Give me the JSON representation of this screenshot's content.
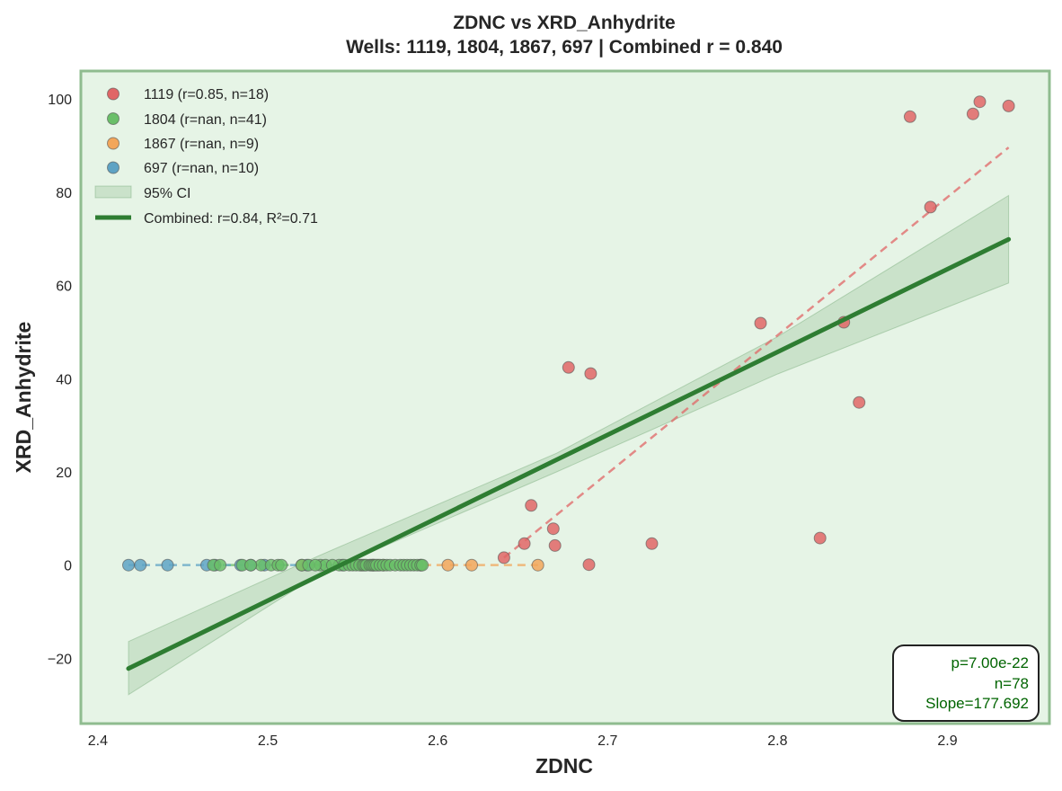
{
  "chart_data": {
    "type": "scatter",
    "title": "ZDNC vs XRD_Anhydrite",
    "subtitle": "Wells: 1119, 1804, 1867, 697 | Combined r = 0.840",
    "xlabel": "ZDNC",
    "ylabel": "XRD_Anhydrite",
    "xlim": [
      2.39,
      2.96
    ],
    "ylim": [
      -34,
      106
    ],
    "xticks": [
      2.4,
      2.5,
      2.6,
      2.7,
      2.8,
      2.9
    ],
    "yticks": [
      -20,
      0,
      20,
      40,
      60,
      80,
      100
    ],
    "ytick_labels": [
      "−20",
      "0",
      "20",
      "40",
      "60",
      "80",
      "100"
    ],
    "grid": false,
    "legend_position": "top-left",
    "background_color": "#e6f4e6",
    "frame_color": "#8fbc8f",
    "series": [
      {
        "name": "1119 (r=0.85, n=18)",
        "color": "#e06666",
        "points": [
          [
            2.639,
            1.6
          ],
          [
            2.651,
            4.6
          ],
          [
            2.655,
            12.8
          ],
          [
            2.668,
            7.8
          ],
          [
            2.669,
            4.2
          ],
          [
            2.677,
            42.4
          ],
          [
            2.689,
            0.1
          ],
          [
            2.69,
            41.1
          ],
          [
            2.726,
            4.6
          ],
          [
            2.79,
            51.9
          ],
          [
            2.825,
            5.8
          ],
          [
            2.839,
            52.1
          ],
          [
            2.848,
            34.9
          ],
          [
            2.878,
            96.2
          ],
          [
            2.89,
            76.8
          ],
          [
            2.915,
            96.8
          ],
          [
            2.919,
            99.4
          ],
          [
            2.936,
            98.5
          ]
        ],
        "fit": [
          [
            2.639,
            1.6
          ],
          [
            2.936,
            89.6
          ]
        ]
      },
      {
        "name": "1804 (r=nan, n=41)",
        "color": "#6abf69",
        "points": [
          [
            2.468,
            0
          ],
          [
            2.472,
            0
          ],
          [
            2.485,
            0
          ],
          [
            2.496,
            0
          ],
          [
            2.502,
            0
          ],
          [
            2.506,
            0
          ],
          [
            2.508,
            0
          ],
          [
            2.52,
            0
          ],
          [
            2.524,
            0
          ],
          [
            2.531,
            0
          ],
          [
            2.534,
            0
          ],
          [
            2.542,
            0
          ],
          [
            2.545,
            0
          ],
          [
            2.548,
            0
          ],
          [
            2.55,
            0
          ],
          [
            2.552,
            0
          ],
          [
            2.554,
            0
          ],
          [
            2.556,
            0
          ],
          [
            2.557,
            0
          ],
          [
            2.558,
            0
          ],
          [
            2.56,
            0
          ],
          [
            2.561,
            0
          ],
          [
            2.562,
            0
          ],
          [
            2.563,
            0
          ],
          [
            2.564,
            0
          ],
          [
            2.566,
            0
          ],
          [
            2.568,
            0
          ],
          [
            2.57,
            0
          ],
          [
            2.572,
            0
          ],
          [
            2.575,
            0
          ],
          [
            2.578,
            0
          ],
          [
            2.58,
            0
          ],
          [
            2.582,
            0
          ],
          [
            2.584,
            0
          ],
          [
            2.586,
            0
          ],
          [
            2.588,
            0
          ],
          [
            2.59,
            0
          ],
          [
            2.591,
            0
          ],
          [
            2.538,
            0
          ],
          [
            2.528,
            0
          ],
          [
            2.49,
            0
          ]
        ],
        "fit": [
          [
            2.468,
            0
          ],
          [
            2.591,
            0
          ]
        ]
      },
      {
        "name": "1867 (r=nan, n=9)",
        "color": "#f2a65a",
        "points": [
          [
            2.52,
            0
          ],
          [
            2.555,
            0
          ],
          [
            2.562,
            0
          ],
          [
            2.565,
            0
          ],
          [
            2.568,
            0
          ],
          [
            2.59,
            0
          ],
          [
            2.606,
            0
          ],
          [
            2.62,
            0
          ],
          [
            2.659,
            0
          ]
        ],
        "fit": [
          [
            2.52,
            0
          ],
          [
            2.659,
            0
          ]
        ]
      },
      {
        "name": "697 (r=nan, n=10)",
        "color": "#5ea3c4",
        "points": [
          [
            2.418,
            0
          ],
          [
            2.425,
            0
          ],
          [
            2.441,
            0
          ],
          [
            2.464,
            0
          ],
          [
            2.469,
            0
          ],
          [
            2.484,
            0
          ],
          [
            2.49,
            0
          ],
          [
            2.498,
            0
          ],
          [
            2.523,
            0
          ],
          [
            2.544,
            0
          ]
        ],
        "fit": [
          [
            2.418,
            0
          ],
          [
            2.544,
            0
          ]
        ]
      }
    ],
    "ci": {
      "name": "95% CI",
      "color": "#2e7d32",
      "upper": [
        [
          2.418,
          -16.4
        ],
        [
          2.53,
          2.0
        ],
        [
          2.67,
          24.0
        ],
        [
          2.8,
          49.0
        ],
        [
          2.936,
          79.3
        ]
      ],
      "lower": [
        [
          2.418,
          -27.8
        ],
        [
          2.53,
          -2.0
        ],
        [
          2.67,
          20.0
        ],
        [
          2.8,
          41.0
        ],
        [
          2.936,
          60.5
        ]
      ]
    },
    "combined_fit": {
      "name": "Combined: r=0.84, R²=0.71",
      "color": "#2e7d32",
      "points": [
        [
          2.418,
          -22.2
        ],
        [
          2.936,
          69.9
        ]
      ]
    },
    "stats": {
      "p": "p=7.00e-22",
      "n": "n=78",
      "slope": "Slope=177.692"
    }
  }
}
